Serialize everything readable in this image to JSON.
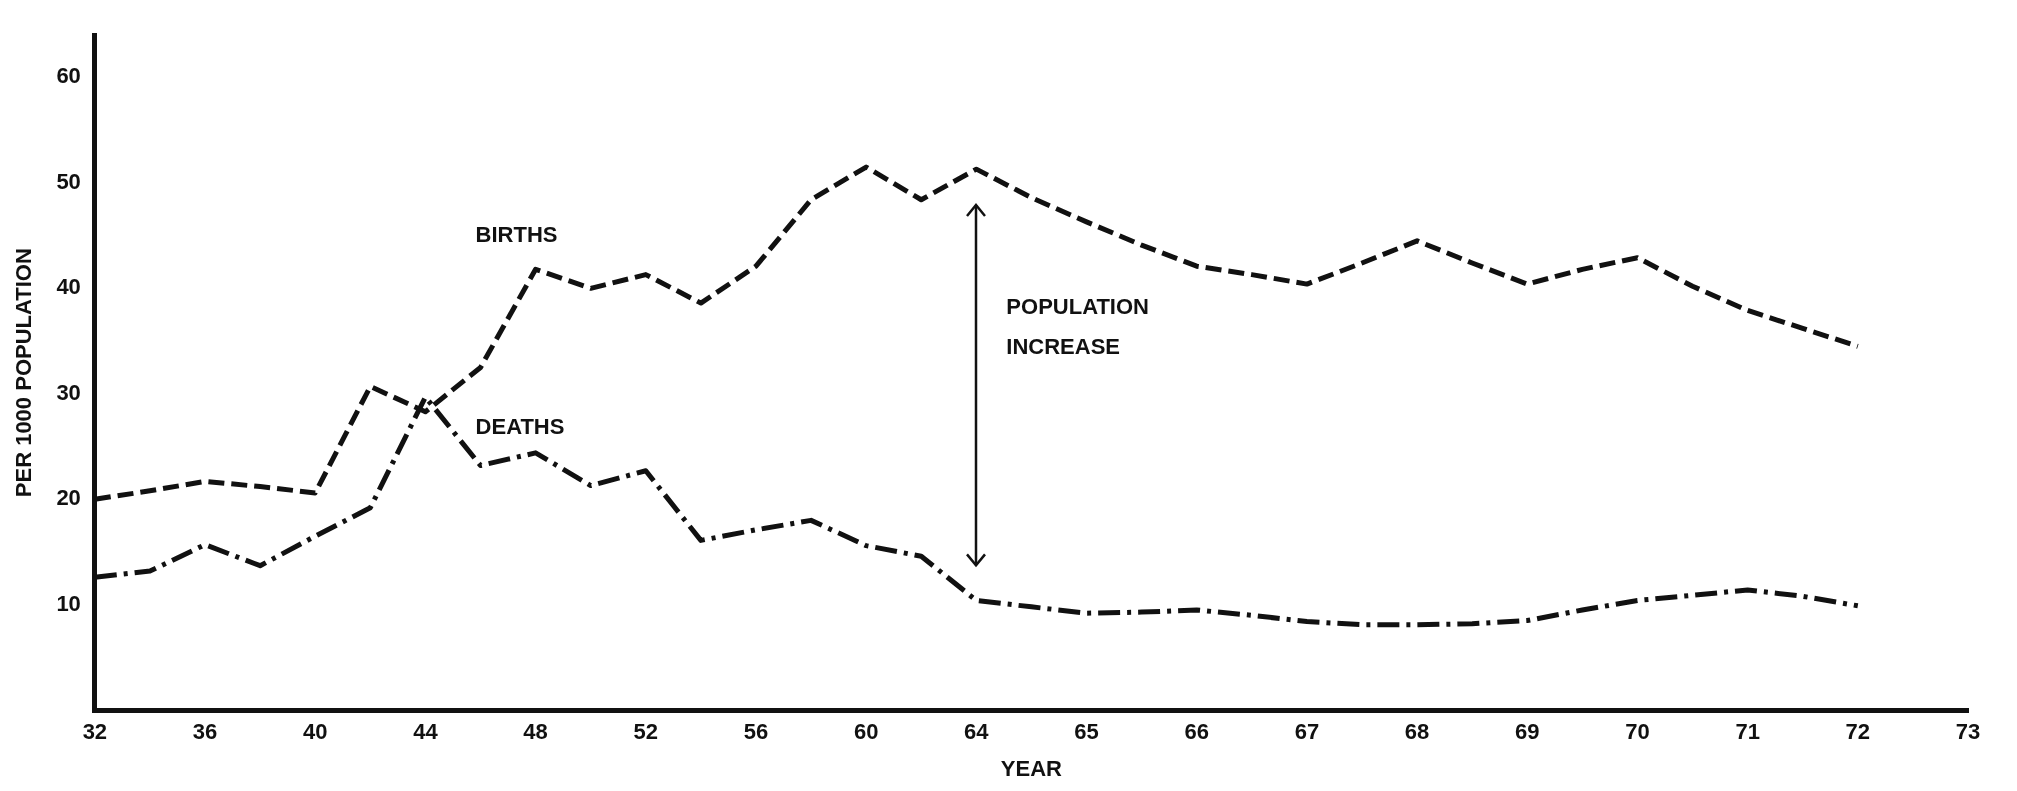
{
  "chart_data": {
    "type": "line",
    "xlabel": "YEAR",
    "ylabel": "PER 1000 POPULATION",
    "categories": [
      "32",
      null,
      "36",
      null,
      "40",
      null,
      "44",
      null,
      "48",
      null,
      "52",
      null,
      "56",
      null,
      "60",
      null,
      "64",
      null,
      "65",
      null,
      "66",
      null,
      "67",
      null,
      "68",
      null,
      "69",
      null,
      "70",
      null,
      "71",
      null,
      "72",
      null,
      "73"
    ],
    "series": [
      {
        "name": "BIRTHS",
        "color": "#111111",
        "line_style": "dashed",
        "values": [
          20,
          20.8,
          21.7,
          21.2,
          20.6,
          30.7,
          28.3,
          32.5,
          41.8,
          40,
          41.3,
          38.6,
          42.1,
          48.4,
          51.5,
          48.4,
          51.3,
          48.6,
          46.3,
          44.1,
          42.1,
          41.3,
          40.4,
          42.4,
          44.5,
          42.4,
          40.4,
          41.8,
          42.9,
          40.2,
          37.9,
          36.2,
          34.5,
          null,
          null
        ]
      },
      {
        "name": "DEATHS",
        "color": "#111111",
        "line_style": "dashed",
        "values": [
          12.6,
          13.2,
          15.7,
          13.7,
          16.5,
          19.2,
          29.7,
          23.2,
          24.4,
          21.3,
          22.7,
          16.1,
          17.1,
          18,
          15.6,
          14.6,
          10.4,
          9.8,
          9.2,
          9.3,
          9.5,
          9,
          8.4,
          8.1,
          8.1,
          8.2,
          8.5,
          9.5,
          10.4,
          10.9,
          11.4,
          10.8,
          9.9,
          null,
          null
        ]
      }
    ],
    "ylim": [
      0,
      64
    ],
    "yticks": [
      10,
      20,
      30,
      40,
      50,
      60
    ],
    "grid": false,
    "legend": false,
    "marker": "none",
    "annotations": [
      "POPULATION INCREASE"
    ]
  }
}
